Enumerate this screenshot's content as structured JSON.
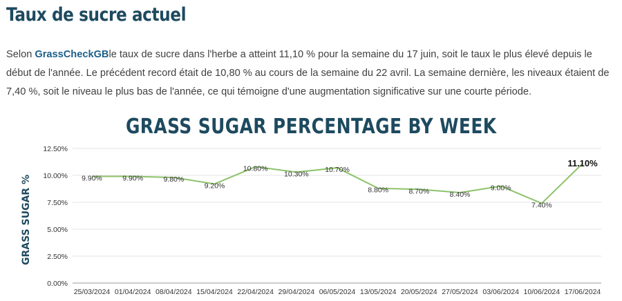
{
  "article": {
    "heading": "Taux de sucre actuel",
    "intro_prefix": "Selon ",
    "link_text": "GrassCheckGB",
    "intro_text": "le taux de sucre dans l'herbe a atteint 11,10 % pour la semaine du 17 juin, soit le taux le plus élevé depuis le début de l'année. Le précédent record était de 10,80 % au cours de la semaine du 22 avril. La semaine dernière, les niveaux étaient de 7,40 %, soit le niveau le plus bas de l'année, ce qui témoigne d'une augmentation significative sur une courte période."
  },
  "colors": {
    "heading": "#1e4a5f",
    "link": "#1c5f8a",
    "line": "#8cc26a",
    "grid": "#e3e3e3"
  },
  "chart_data": {
    "type": "line",
    "title": "GRASS SUGAR PERCENTAGE BY WEEK",
    "ylabel": "GRASS SUGAR %",
    "xlabel": "",
    "categories": [
      "25/03/2024",
      "01/04/2024",
      "08/04/2024",
      "15/04/2024",
      "22/04/2024",
      "29/04/2024",
      "06/05/2024",
      "13/05/2024",
      "20/05/2024",
      "27/05/2024",
      "03/06/2024",
      "10/06/2024",
      "17/06/2024"
    ],
    "values": [
      9.9,
      9.9,
      9.8,
      9.2,
      10.8,
      10.3,
      10.7,
      8.8,
      8.7,
      8.4,
      9.0,
      7.4,
      11.1
    ],
    "value_labels": [
      "9.90%",
      "9.90%",
      "9.80%",
      "9.20%",
      "10.80%",
      "10.30%",
      "10.70%",
      "8.80%",
      "8.70%",
      "8.40%",
      "9.00%",
      "7.40%",
      "11.10%"
    ],
    "y_ticks": [
      0,
      2.5,
      5,
      7.5,
      10,
      12.5
    ],
    "y_tick_labels": [
      "0.00%",
      "2.50%",
      "5.00%",
      "7.50%",
      "10.00%",
      "12.50%"
    ],
    "ylim": [
      0,
      12.5
    ],
    "grid": true,
    "highlight_index": 12
  }
}
